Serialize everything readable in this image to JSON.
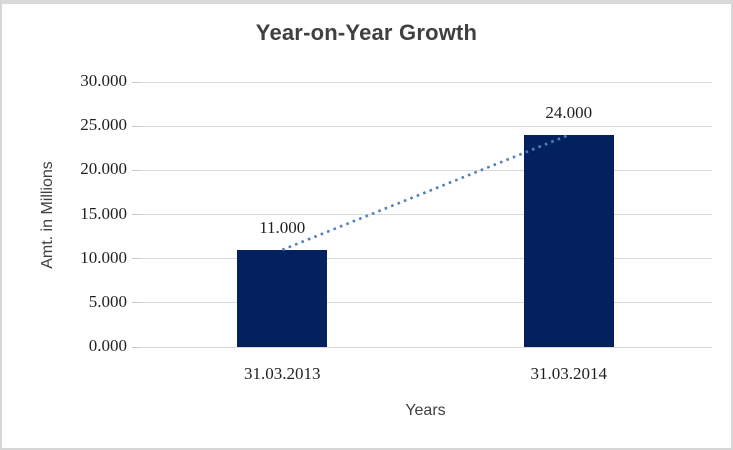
{
  "chart_data": {
    "type": "bar",
    "title": "Year-on-Year Growth",
    "xlabel": "Years",
    "ylabel": "Amt. in Millions",
    "categories": [
      "31.03.2013",
      "31.03.2014"
    ],
    "values": [
      11,
      24
    ],
    "data_labels": [
      "11.000",
      "24.000"
    ],
    "yticks": [
      0,
      5,
      10,
      15,
      20,
      25,
      30
    ],
    "ytick_labels": [
      "0.000",
      "5.000",
      "10.000",
      "15.000",
      "20.000",
      "25.000",
      "30.000"
    ],
    "ylim": [
      0,
      30
    ],
    "grid": true,
    "legend": false,
    "trendline": {
      "type": "linear",
      "style": "dotted",
      "from_value": 11,
      "to_value": 24
    },
    "colors": {
      "bar": "#03215e",
      "trendline": "#4f81bd",
      "gridline": "#d9d9d9",
      "title_text": "#404040",
      "tick_text": "#1f1f1f"
    }
  }
}
